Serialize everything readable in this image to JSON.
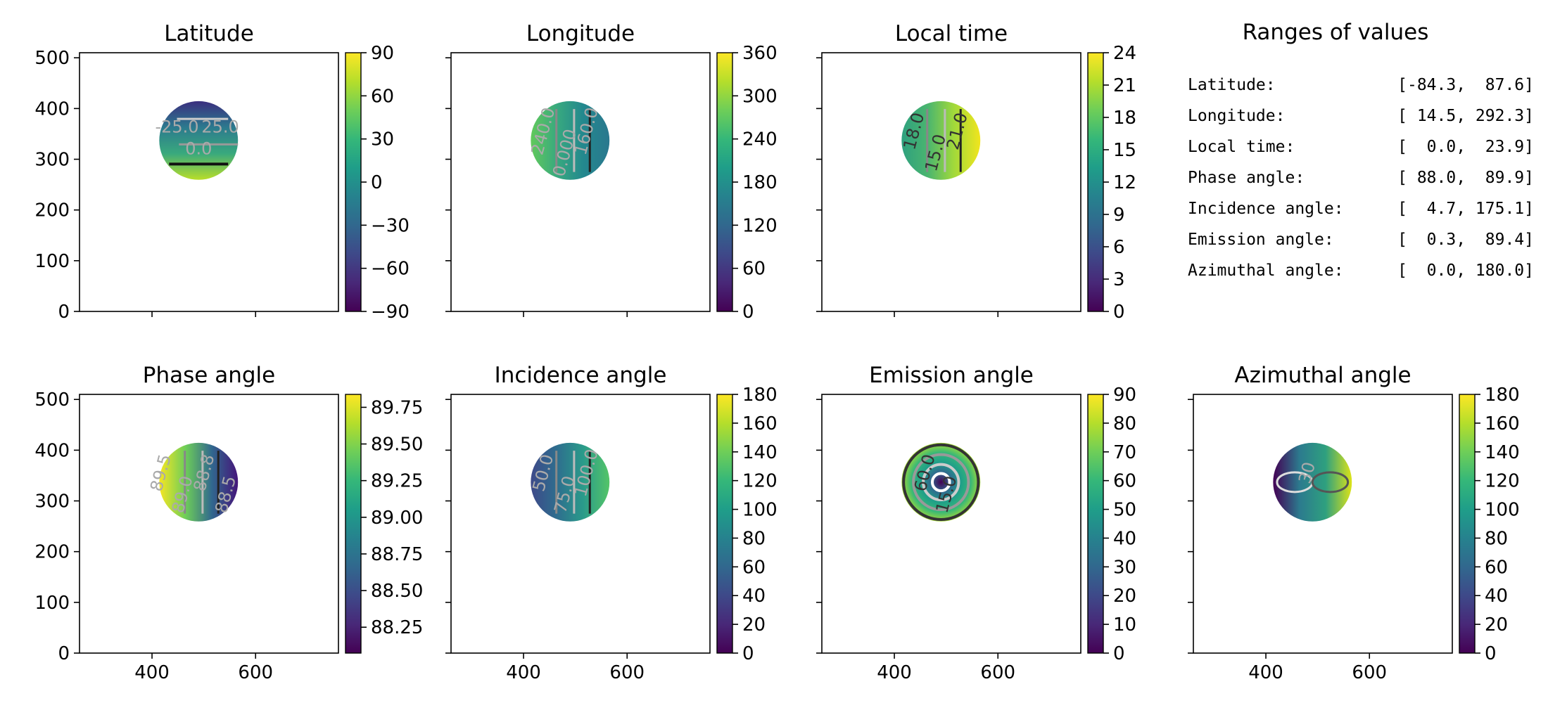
{
  "chart_data": [
    {
      "type": "heatmap",
      "title": "Latitude",
      "xlim": [
        260,
        760
      ],
      "ylim": [
        0,
        510
      ],
      "xticks": [],
      "yticks": [
        "0",
        "100",
        "200",
        "300",
        "400",
        "500"
      ],
      "colorbar": {
        "ticks": [
          "90",
          "60",
          "30",
          "0",
          "−30",
          "−60",
          "−90"
        ]
      },
      "disk": {
        "center": [
          490,
          337
        ],
        "radius": 76
      },
      "contour_labels": [
        "-25.0",
        "0.0",
        "25.0"
      ],
      "value_range": [
        -84.3,
        87.6
      ]
    },
    {
      "type": "heatmap",
      "title": "Longitude",
      "xlim": [
        260,
        760
      ],
      "ylim": [
        0,
        510
      ],
      "xticks": [],
      "yticks": [],
      "colorbar": {
        "ticks": [
          "360",
          "300",
          "240",
          "180",
          "120",
          "60",
          "0"
        ]
      },
      "disk": {
        "center": [
          490,
          337
        ],
        "radius": 76
      },
      "contour_labels": [
        "240.0",
        "0.000",
        "160.0"
      ],
      "value_range": [
        14.5,
        292.3
      ]
    },
    {
      "type": "heatmap",
      "title": "Local time",
      "xlim": [
        260,
        760
      ],
      "ylim": [
        0,
        510
      ],
      "xticks": [],
      "yticks": [],
      "colorbar": {
        "ticks": [
          "24",
          "21",
          "18",
          "15",
          "12",
          "9",
          "6",
          "3",
          "0"
        ]
      },
      "disk": {
        "center": [
          490,
          337
        ],
        "radius": 76
      },
      "contour_labels": [
        "18.0",
        "15.0",
        "21.0"
      ],
      "value_range": [
        0.0,
        23.9
      ]
    },
    {
      "type": "heatmap",
      "title": "Phase angle",
      "xlim": [
        260,
        760
      ],
      "ylim": [
        0,
        510
      ],
      "xticks": [
        "400",
        "600"
      ],
      "yticks": [
        "0",
        "100",
        "200",
        "300",
        "400",
        "500"
      ],
      "colorbar": {
        "ticks": [
          "89.75",
          "89.50",
          "89.25",
          "89.00",
          "88.75",
          "88.50",
          "88.25"
        ]
      },
      "disk": {
        "center": [
          490,
          337
        ],
        "radius": 76
      },
      "contour_labels": [
        "89.5",
        "89.0",
        "88.8",
        "88.5"
      ],
      "value_range": [
        88.0,
        89.9
      ]
    },
    {
      "type": "heatmap",
      "title": "Incidence angle",
      "xlim": [
        260,
        760
      ],
      "ylim": [
        0,
        510
      ],
      "xticks": [
        "400",
        "600"
      ],
      "yticks": [],
      "colorbar": {
        "ticks": [
          "180",
          "160",
          "140",
          "120",
          "100",
          "80",
          "60",
          "40",
          "20",
          "0"
        ]
      },
      "disk": {
        "center": [
          490,
          337
        ],
        "radius": 76
      },
      "contour_labels": [
        "50.0",
        "75.0",
        "100.0"
      ],
      "value_range": [
        4.7,
        175.1
      ]
    },
    {
      "type": "heatmap",
      "title": "Emission angle",
      "xlim": [
        260,
        760
      ],
      "ylim": [
        0,
        510
      ],
      "xticks": [
        "400",
        "600"
      ],
      "yticks": [],
      "colorbar": {
        "ticks": [
          "90",
          "80",
          "70",
          "60",
          "50",
          "40",
          "30",
          "20",
          "10",
          "0"
        ]
      },
      "disk": {
        "center": [
          490,
          337
        ],
        "radius": 76
      },
      "contour_labels": [
        "60.0",
        "15.0"
      ],
      "value_range": [
        0.3,
        89.4
      ]
    },
    {
      "type": "heatmap",
      "title": "Azimuthal angle",
      "xlim": [
        260,
        760
      ],
      "ylim": [
        0,
        510
      ],
      "xticks": [
        "400",
        "600"
      ],
      "yticks": [],
      "colorbar": {
        "ticks": [
          "180",
          "160",
          "140",
          "120",
          "100",
          "80",
          "60",
          "40",
          "20",
          "0"
        ]
      },
      "disk": {
        "center": [
          490,
          337
        ],
        "radius": 76
      },
      "contour_labels": [
        "30"
      ],
      "value_range": [
        0.0,
        180.0
      ]
    }
  ],
  "ranges": {
    "title": "Ranges of values",
    "rows": [
      {
        "label": "Latitude:",
        "value": "[-84.3,  87.6]"
      },
      {
        "label": "Longitude:",
        "value": "[ 14.5, 292.3]"
      },
      {
        "label": "Local time:",
        "value": "[  0.0,  23.9]"
      },
      {
        "label": "Phase angle:",
        "value": "[ 88.0,  89.9]"
      },
      {
        "label": "Incidence angle:",
        "value": "[  4.7, 175.1]"
      },
      {
        "label": "Emission angle:",
        "value": "[  0.3,  89.4]"
      },
      {
        "label": "Azimuthal angle:",
        "value": "[  0.0, 180.0]"
      }
    ]
  },
  "colors": {
    "viridis": [
      "#440154",
      "#482878",
      "#3e4989",
      "#31688e",
      "#26828e",
      "#1f9e89",
      "#35b779",
      "#6ece58",
      "#b5de2b",
      "#fde725"
    ]
  }
}
